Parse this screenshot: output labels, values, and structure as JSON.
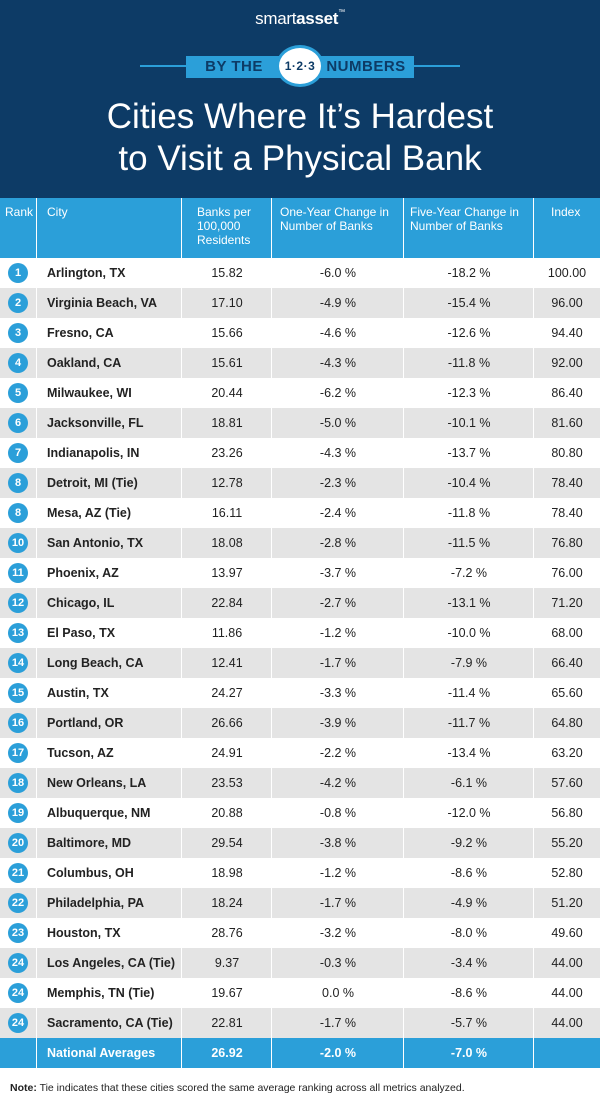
{
  "brand": {
    "part1": "smart",
    "part2": "asset",
    "mark": "™"
  },
  "ribbon": {
    "left": "BY THE",
    "badge": "1·2·3",
    "right": "NUMBERS"
  },
  "title": {
    "line1": "Cities Where It’s Hardest",
    "line2": "to Visit a Physical Bank"
  },
  "chart_data": {
    "type": "table",
    "columns": [
      "Rank",
      "City",
      "Banks per 100,000 Residents",
      "One-Year Change in Number of Banks",
      "Five-Year Change in Number of Banks",
      "Index"
    ],
    "rows": [
      {
        "rank": "1",
        "city": "Arlington, TX",
        "banks": "15.82",
        "one_year": "-6.0 %",
        "five_year": "-18.2 %",
        "index": "100.00"
      },
      {
        "rank": "2",
        "city": "Virginia Beach, VA",
        "banks": "17.10",
        "one_year": "-4.9 %",
        "five_year": "-15.4 %",
        "index": "96.00"
      },
      {
        "rank": "3",
        "city": "Fresno, CA",
        "banks": "15.66",
        "one_year": "-4.6 %",
        "five_year": "-12.6 %",
        "index": "94.40"
      },
      {
        "rank": "4",
        "city": "Oakland, CA",
        "banks": "15.61",
        "one_year": "-4.3 %",
        "five_year": "-11.8 %",
        "index": "92.00"
      },
      {
        "rank": "5",
        "city": "Milwaukee, WI",
        "banks": "20.44",
        "one_year": "-6.2 %",
        "five_year": "-12.3 %",
        "index": "86.40"
      },
      {
        "rank": "6",
        "city": "Jacksonville, FL",
        "banks": "18.81",
        "one_year": "-5.0 %",
        "five_year": "-10.1 %",
        "index": "81.60"
      },
      {
        "rank": "7",
        "city": "Indianapolis, IN",
        "banks": "23.26",
        "one_year": "-4.3 %",
        "five_year": "-13.7 %",
        "index": "80.80"
      },
      {
        "rank": "8",
        "city": "Detroit, MI (Tie)",
        "banks": "12.78",
        "one_year": "-2.3 %",
        "five_year": "-10.4 %",
        "index": "78.40"
      },
      {
        "rank": "8",
        "city": "Mesa, AZ (Tie)",
        "banks": "16.11",
        "one_year": "-2.4 %",
        "five_year": "-11.8 %",
        "index": "78.40"
      },
      {
        "rank": "10",
        "city": "San Antonio, TX",
        "banks": "18.08",
        "one_year": "-2.8 %",
        "five_year": "-11.5 %",
        "index": "76.80"
      },
      {
        "rank": "11",
        "city": "Phoenix, AZ",
        "banks": "13.97",
        "one_year": "-3.7 %",
        "five_year": "-7.2 %",
        "index": "76.00"
      },
      {
        "rank": "12",
        "city": "Chicago, IL",
        "banks": "22.84",
        "one_year": "-2.7 %",
        "five_year": "-13.1 %",
        "index": "71.20"
      },
      {
        "rank": "13",
        "city": "El Paso, TX",
        "banks": "11.86",
        "one_year": "-1.2 %",
        "five_year": "-10.0 %",
        "index": "68.00"
      },
      {
        "rank": "14",
        "city": "Long Beach, CA",
        "banks": "12.41",
        "one_year": "-1.7 %",
        "five_year": "-7.9 %",
        "index": "66.40"
      },
      {
        "rank": "15",
        "city": "Austin, TX",
        "banks": "24.27",
        "one_year": "-3.3 %",
        "five_year": "-11.4 %",
        "index": "65.60"
      },
      {
        "rank": "16",
        "city": "Portland, OR",
        "banks": "26.66",
        "one_year": "-3.9 %",
        "five_year": "-11.7 %",
        "index": "64.80"
      },
      {
        "rank": "17",
        "city": "Tucson, AZ",
        "banks": "24.91",
        "one_year": "-2.2 %",
        "five_year": "-13.4 %",
        "index": "63.20"
      },
      {
        "rank": "18",
        "city": "New Orleans, LA",
        "banks": "23.53",
        "one_year": "-4.2 %",
        "five_year": "-6.1 %",
        "index": "57.60"
      },
      {
        "rank": "19",
        "city": "Albuquerque, NM",
        "banks": "20.88",
        "one_year": "-0.8 %",
        "five_year": "-12.0 %",
        "index": "56.80"
      },
      {
        "rank": "20",
        "city": "Baltimore, MD",
        "banks": "29.54",
        "one_year": "-3.8 %",
        "five_year": "-9.2 %",
        "index": "55.20"
      },
      {
        "rank": "21",
        "city": "Columbus, OH",
        "banks": "18.98",
        "one_year": "-1.2 %",
        "five_year": "-8.6 %",
        "index": "52.80"
      },
      {
        "rank": "22",
        "city": "Philadelphia, PA",
        "banks": "18.24",
        "one_year": "-1.7 %",
        "five_year": "-4.9 %",
        "index": "51.20"
      },
      {
        "rank": "23",
        "city": "Houston, TX",
        "banks": "28.76",
        "one_year": "-3.2 %",
        "five_year": "-8.0 %",
        "index": "49.60"
      },
      {
        "rank": "24",
        "city": "Los Angeles, CA (Tie)",
        "banks": "9.37",
        "one_year": "-0.3 %",
        "five_year": "-3.4 %",
        "index": "44.00"
      },
      {
        "rank": "24",
        "city": "Memphis, TN (Tie)",
        "banks": "19.67",
        "one_year": "0.0 %",
        "five_year": "-8.6 %",
        "index": "44.00"
      },
      {
        "rank": "24",
        "city": "Sacramento, CA (Tie)",
        "banks": "22.81",
        "one_year": "-1.7 %",
        "five_year": "-5.7 %",
        "index": "44.00"
      }
    ],
    "averages": {
      "label": "National Averages",
      "banks": "26.92",
      "one_year": "-2.0 %",
      "five_year": "-7.0 %"
    }
  },
  "note": {
    "label": "Note:",
    "text": " Tie indicates that these cities scored the same average ranking across all metrics analyzed."
  },
  "colors": {
    "navy": "#0d3b66",
    "blue": "#2b9fd9",
    "stripe": "#e4e4e4"
  }
}
